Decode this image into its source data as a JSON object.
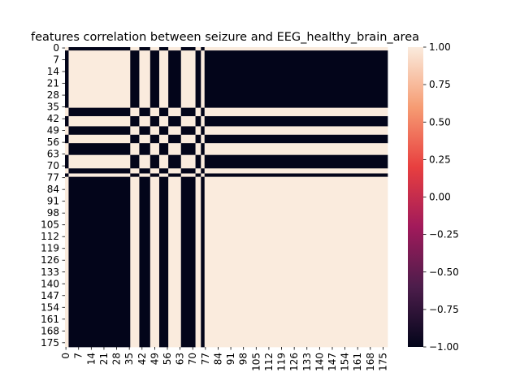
{
  "chart_data": {
    "type": "heatmap",
    "title": "features correlation between seizure  and EEG_healthy_brain_area",
    "n": 178,
    "x_ticks": [
      "0",
      "7",
      "14",
      "21",
      "28",
      "35",
      "42",
      "49",
      "56",
      "63",
      "70",
      "77",
      "84",
      "91",
      "98",
      "105",
      "112",
      "119",
      "126",
      "133",
      "140",
      "147",
      "154",
      "161",
      "168",
      "175"
    ],
    "y_ticks": [
      "0",
      "7",
      "14",
      "21",
      "28",
      "35",
      "42",
      "49",
      "56",
      "63",
      "70",
      "77",
      "84",
      "91",
      "98",
      "105",
      "112",
      "119",
      "126",
      "133",
      "140",
      "147",
      "154",
      "161",
      "168",
      "175"
    ],
    "tick_step": 7,
    "negative_indices": [
      0,
      1,
      36,
      37,
      38,
      39,
      40,
      47,
      48,
      49,
      50,
      51,
      57,
      58,
      59,
      60,
      61,
      62,
      63,
      72,
      73,
      74,
      77,
      78,
      79,
      80,
      81,
      82,
      83,
      84,
      85,
      86,
      87,
      88,
      89,
      90,
      91,
      92,
      93,
      94,
      95,
      96,
      97,
      98,
      99,
      100,
      101,
      102,
      103,
      104,
      105,
      106,
      107,
      108,
      109,
      110,
      111,
      112,
      113,
      114,
      115,
      116,
      117,
      118,
      119,
      120,
      121,
      122,
      123,
      124,
      125,
      126,
      127,
      128,
      129,
      130,
      131,
      132,
      133,
      134,
      135,
      136,
      137,
      138,
      139,
      140,
      141,
      142,
      143,
      144,
      145,
      146,
      147,
      148,
      149,
      150,
      151,
      152,
      153,
      154,
      155,
      156,
      157,
      158,
      159,
      160,
      161,
      162,
      163,
      164,
      165,
      166,
      167,
      168,
      169,
      170,
      171,
      172,
      173,
      174,
      175,
      176,
      177
    ],
    "negative_set_exact": false,
    "value_min": -1.0,
    "value_max": 1.0,
    "colorbar": {
      "ticks": [
        "1.00",
        "0.75",
        "0.50",
        "0.25",
        "0.00",
        "−0.25",
        "−0.50",
        "−0.75",
        "−1.00"
      ],
      "tick_values": [
        1.0,
        0.75,
        0.5,
        0.25,
        0.0,
        -0.25,
        -0.5,
        -0.75,
        -1.0
      ],
      "colormap": "rocket",
      "colors": [
        "#03051a",
        "#4c1d4b",
        "#a11a5b",
        "#e83f3f",
        "#f69c73",
        "#faebdd"
      ]
    },
    "grid": false
  }
}
